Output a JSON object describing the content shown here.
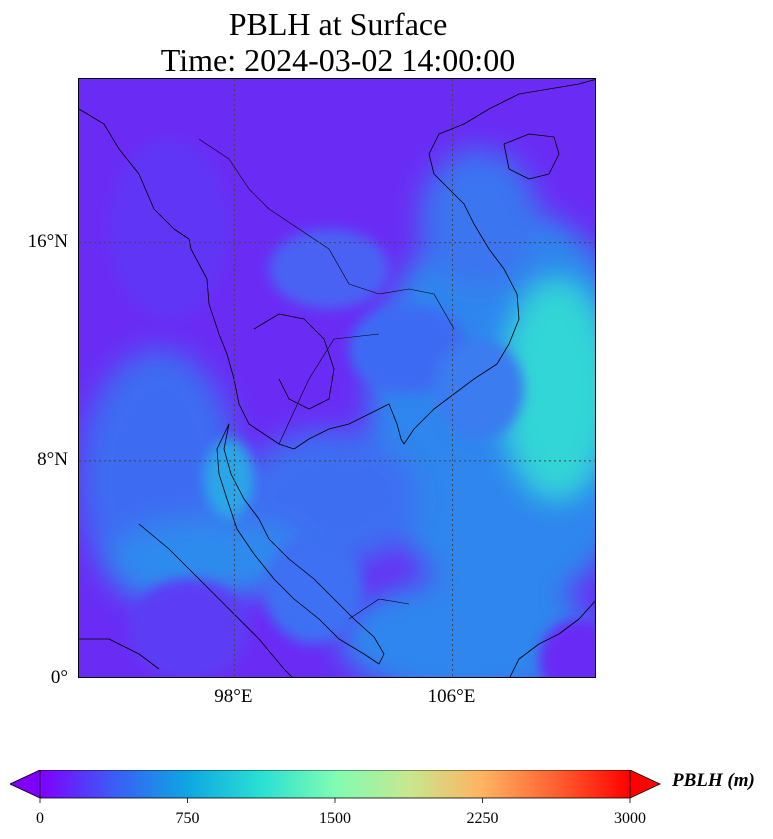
{
  "title": {
    "line1": "PBLH at Surface",
    "line2": "Time: 2024-03-02 14:00:00"
  },
  "map": {
    "lon_range": [
      92.3,
      111.3
    ],
    "lat_range": [
      0,
      22.0
    ],
    "gridlines": {
      "style": "dotted",
      "lons": [
        98,
        106
      ],
      "lats": [
        8,
        16
      ]
    },
    "lat_ticks": [
      {
        "value": 16,
        "label": "16°N"
      },
      {
        "value": 8,
        "label": "8°N"
      },
      {
        "value": 0,
        "label": "0°"
      }
    ],
    "lon_ticks": [
      {
        "value": 98,
        "label": "98°E"
      },
      {
        "value": 106,
        "label": "106°E"
      }
    ],
    "colors": {
      "background": "#6a2cf5",
      "coast": "#000000"
    }
  },
  "colorbar": {
    "label": "PBLH (m)",
    "colormap": "rainbow",
    "min": 0,
    "max": 3000,
    "extend": "both",
    "ticks": [
      {
        "value": 0,
        "label": "0"
      },
      {
        "value": 750,
        "label": "750"
      },
      {
        "value": 1500,
        "label": "1500"
      },
      {
        "value": 2250,
        "label": "2250"
      },
      {
        "value": 3000,
        "label": "3000"
      }
    ],
    "stops": [
      "#7f00ff",
      "#3b5cf6",
      "#0ea6e2",
      "#2ae0d2",
      "#7ffcb2",
      "#c6e890",
      "#ffb360",
      "#ff6030",
      "#ff0000"
    ]
  }
}
